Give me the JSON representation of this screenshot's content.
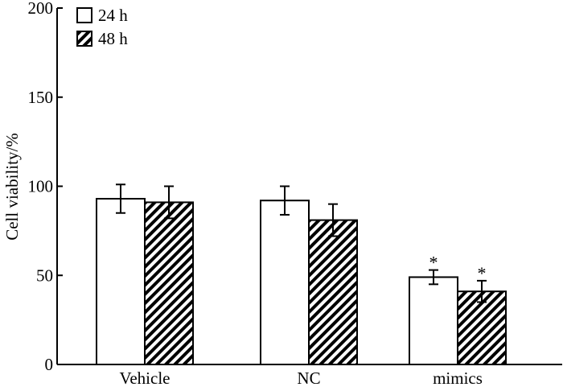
{
  "chart_data": {
    "type": "bar",
    "categories": [
      "Vehicle",
      "NC",
      "mimics"
    ],
    "series": [
      {
        "name": "24 h",
        "values": [
          93,
          92,
          49
        ],
        "errors": [
          8,
          8,
          4
        ],
        "pattern": "empty"
      },
      {
        "name": "48 h",
        "values": [
          91,
          81,
          41
        ],
        "errors": [
          9,
          9,
          6
        ],
        "pattern": "hatched"
      }
    ],
    "annotations": [
      {
        "category": "mimics",
        "series": "24 h",
        "text": "*"
      },
      {
        "category": "mimics",
        "series": "48 h",
        "text": "*"
      }
    ],
    "ylabel": "Cell viability/%",
    "xlabel": "",
    "ylim": [
      0,
      200
    ],
    "yticks": [
      0,
      50,
      100,
      150,
      200
    ],
    "legend_position": "top-left",
    "grid": false
  }
}
